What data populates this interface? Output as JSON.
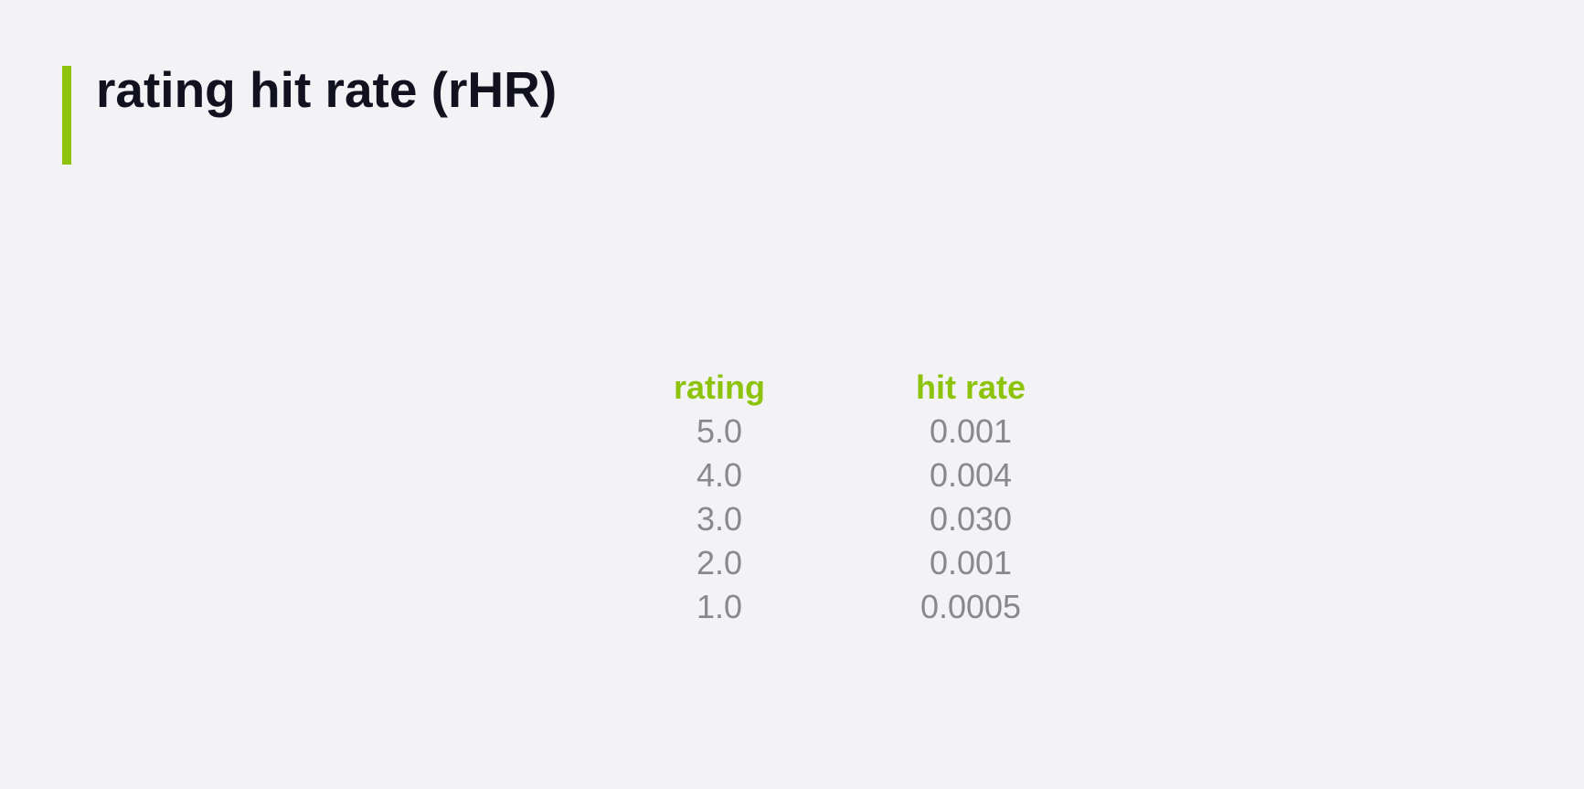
{
  "slide": {
    "title": "rating hit rate (rHR)",
    "accent_color": "#8dc40b",
    "table": {
      "headers": [
        "rating",
        "hit rate"
      ],
      "rows": [
        [
          "5.0",
          "0.001"
        ],
        [
          "4.0",
          "0.004"
        ],
        [
          "3.0",
          "0.030"
        ],
        [
          "2.0",
          "0.001"
        ],
        [
          "1.0",
          "0.0005"
        ]
      ]
    }
  }
}
